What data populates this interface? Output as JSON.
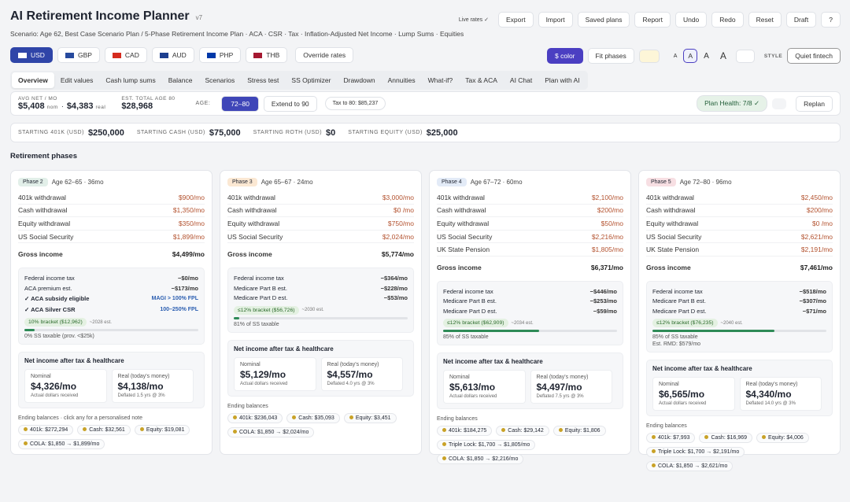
{
  "header": {
    "title": "AI Retirement Income Planner",
    "version": "v7",
    "scenario": "Scenario: Age 62, Best Case Scenario Plan / 5-Phase Retirement Income Plan · ACA · CSR · Tax · Inflation-Adjusted Net Income · Lump Sums · Equities",
    "live_rates": "Live rates ✓",
    "actions": [
      "Export",
      "Import",
      "Saved plans",
      "Report",
      "Undo",
      "Redo",
      "Reset",
      "Draft",
      "?"
    ]
  },
  "currencies": {
    "items": [
      "USD",
      "GBP",
      "CAD",
      "AUD",
      "PHP",
      "THB"
    ],
    "override": "Override rates"
  },
  "controls": {
    "color": "$ color",
    "fit": "Fit phases",
    "font_sizes": [
      "A",
      "A",
      "A",
      "A"
    ],
    "style_label": "STYLE",
    "style_value": "Quiet fintech"
  },
  "tabs": [
    "Overview",
    "Edit values",
    "Cash lump sums",
    "Balance",
    "Scenarios",
    "Stress test",
    "SS Optimizer",
    "Drawdown",
    "Annuities",
    "What-if?",
    "Tax & ACA",
    "AI Chat",
    "Plan with AI"
  ],
  "summary": {
    "avg_label": "AVG NET / MO",
    "nominal": "$5,408",
    "nominal_unit": "nom",
    "sep": "·",
    "real": "$4,383",
    "real_unit": "real",
    "total_label": "EST. TOTAL AGE 80",
    "total": "$28,968",
    "age_label": "AGE:",
    "age_range": "72–80",
    "extend": "Extend to 90",
    "tax": "Tax to 80: $85,237",
    "health": "Plan Health: 7/8 ✓",
    "replan": "Replan"
  },
  "starting": [
    {
      "label": "STARTING 401K (USD)",
      "value": "$250,000"
    },
    {
      "label": "STARTING CASH (USD)",
      "value": "$75,000"
    },
    {
      "label": "STARTING ROTH (USD)",
      "value": "$0"
    },
    {
      "label": "STARTING EQUITY (USD)",
      "value": "$25,000"
    }
  ],
  "section_title": "Retirement phases",
  "phases": [
    {
      "badge": "Phase 2",
      "badge_color": "#e2efe9",
      "age": "Age 62–65 · 36mo",
      "rows": [
        [
          "401k withdrawal",
          "$900/mo"
        ],
        [
          "Cash withdrawal",
          "$1,350/mo"
        ],
        [
          "Equity withdrawal",
          "$350/mo"
        ],
        [
          "US Social Security",
          "$1,899/mo"
        ]
      ],
      "gross": [
        "Gross income",
        "$4,499/mo"
      ],
      "tax": {
        "rows": [
          [
            "Federal income tax",
            "−$0/mo"
          ],
          [
            "ACA premium est.",
            "−$173/mo"
          ]
        ],
        "checks": [
          [
            "✓ ACA subsidy eligible",
            "MAGI > 100% FPL"
          ],
          [
            "✓ ACA Silver CSR",
            "100–250% FPL"
          ]
        ],
        "bracket": [
          "10% bracket ($12,962)",
          "~2028 est."
        ],
        "notes": [
          "0% SS taxable (prov. <$25k)"
        ]
      },
      "net": {
        "title": "Net income after tax & healthcare",
        "nominal": [
          "Nominal",
          "$4,326/mo",
          "Actual dollars received"
        ],
        "real": [
          "Real (today's money)",
          "$4,138/mo",
          "Deflated 1.5 yrs @ 3%"
        ]
      },
      "ending": {
        "title": "Ending balances · click any for a personalised note",
        "chips": [
          "401k: $272,294",
          "Cash: $32,561",
          "Equity: $19,081",
          "COLA: $1,850 → $1,899/mo"
        ]
      }
    },
    {
      "badge": "Phase 3",
      "badge_color": "#fbe8d3",
      "age": "Age 65–67 · 24mo",
      "rows": [
        [
          "401k withdrawal",
          "$3,000/mo"
        ],
        [
          "Cash withdrawal",
          "$0  /mo"
        ],
        [
          "Equity withdrawal",
          "$750/mo"
        ],
        [
          "US Social Security",
          "$2,024/mo"
        ]
      ],
      "gross": [
        "Gross income",
        "$5,774/mo"
      ],
      "tax": {
        "rows": [
          [
            "Federal income tax",
            "−$364/mo"
          ],
          [
            "Medicare Part B est.",
            "−$228/mo"
          ],
          [
            "Medicare Part D est.",
            "−$53/mo"
          ]
        ],
        "checks": [],
        "bracket": [
          "≤12% bracket ($56,726)",
          "~2030 est."
        ],
        "notes": [
          "81% of SS taxable"
        ]
      },
      "net": {
        "title": "Net income after tax & healthcare",
        "nominal": [
          "Nominal",
          "$5,129/mo",
          "Actual dollars received"
        ],
        "real": [
          "Real (today's money)",
          "$4,557/mo",
          "Deflated 4.0 yrs @ 3%"
        ]
      },
      "ending": {
        "title": "Ending balances",
        "chips": [
          "401k: $236,043",
          "Cash: $35,093",
          "Equity: $3,451",
          "COLA: $1,850 → $2,024/mo"
        ]
      }
    },
    {
      "badge": "Phase 4",
      "badge_color": "#e3ebf7",
      "age": "Age 67–72 · 60mo",
      "rows": [
        [
          "401k withdrawal",
          "$2,100/mo"
        ],
        [
          "Cash withdrawal",
          "$200/mo"
        ],
        [
          "Equity withdrawal",
          "$50/mo"
        ],
        [
          "US Social Security",
          "$2,216/mo"
        ],
        [
          "UK State Pension",
          "$1,805/mo"
        ]
      ],
      "gross": [
        "Gross income",
        "$6,371/mo"
      ],
      "tax": {
        "rows": [
          [
            "Federal income tax",
            "−$446/mo"
          ],
          [
            "Medicare Part B est.",
            "−$253/mo"
          ],
          [
            "Medicare Part D est.",
            "−$59/mo"
          ]
        ],
        "checks": [],
        "bracket": [
          "≤12% bracket ($62,909)",
          "~2034 est."
        ],
        "notes": [
          "85% of SS taxable"
        ]
      },
      "net": {
        "title": "Net income after tax & healthcare",
        "nominal": [
          "Nominal",
          "$5,613/mo",
          "Actual dollars received"
        ],
        "real": [
          "Real (today's money)",
          "$4,497/mo",
          "Deflated 7.5 yrs @ 3%"
        ]
      },
      "ending": {
        "title": "Ending balances",
        "chips": [
          "401k: $184,275",
          "Cash: $29,142",
          "Equity: $1,806",
          "Triple Lock: $1,700 → $1,805/mo",
          "COLA: $1,850 → $2,216/mo"
        ]
      }
    },
    {
      "badge": "Phase 5",
      "badge_color": "#f7dfe3",
      "age": "Age 72–80 · 96mo",
      "rows": [
        [
          "401k withdrawal",
          "$2,450/mo"
        ],
        [
          "Cash withdrawal",
          "$200/mo"
        ],
        [
          "Equity withdrawal",
          "$0  /mo"
        ],
        [
          "US Social Security",
          "$2,621/mo"
        ],
        [
          "UK State Pension",
          "$2,191/mo"
        ]
      ],
      "gross": [
        "Gross income",
        "$7,461/mo"
      ],
      "tax": {
        "rows": [
          [
            "Federal income tax",
            "−$518/mo"
          ],
          [
            "Medicare Part B est.",
            "−$307/mo"
          ],
          [
            "Medicare Part D est.",
            "−$71/mo"
          ]
        ],
        "checks": [],
        "bracket": [
          "≤12% bracket ($76,235)",
          "~2040 est."
        ],
        "notes": [
          "85% of SS taxable",
          "Est. RMD: $579/mo"
        ]
      },
      "net": {
        "title": "Net income after tax & healthcare",
        "nominal": [
          "Nominal",
          "$6,565/mo",
          "Actual dollars received"
        ],
        "real": [
          "Real (today's money)",
          "$4,340/mo",
          "Deflated 14.0 yrs @ 3%"
        ]
      },
      "ending": {
        "title": "Ending balances",
        "chips": [
          "401k: $7,993",
          "Cash: $16,969",
          "Equity: $4,006",
          "Triple Lock: $1,700 → $2,191/mo",
          "COLA: $1,850 → $2,621/mo"
        ]
      }
    }
  ]
}
